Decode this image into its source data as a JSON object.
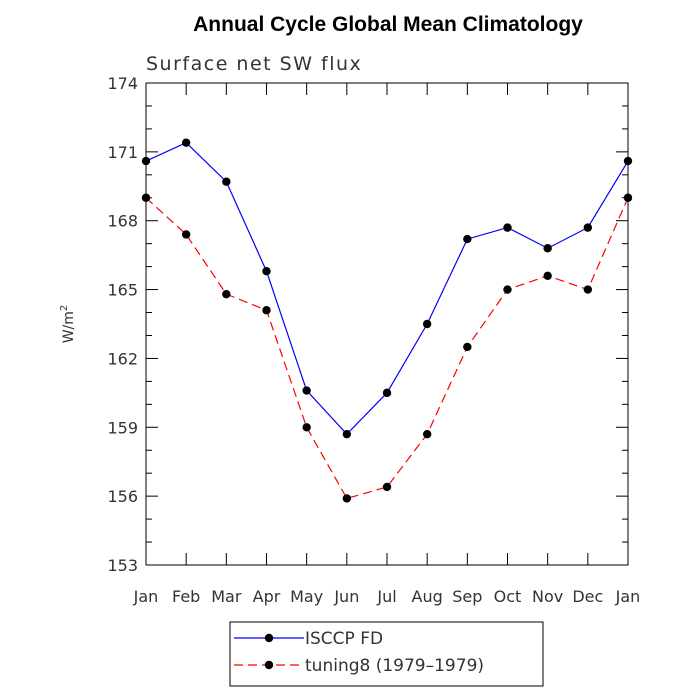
{
  "chart_data": {
    "type": "line",
    "title": "Annual Cycle Global Mean Climatology",
    "subtitle": "Surface net SW flux",
    "xlabel": "",
    "ylabel": "W/m",
    "ylabel_sup": "2",
    "categories": [
      "Jan",
      "Feb",
      "Mar",
      "Apr",
      "May",
      "Jun",
      "Jul",
      "Aug",
      "Sep",
      "Oct",
      "Nov",
      "Dec",
      "Jan"
    ],
    "ylim": [
      153,
      174
    ],
    "yticks": [
      153,
      156,
      159,
      162,
      165,
      168,
      171,
      174
    ],
    "grid": false,
    "legend_position": "bottom",
    "series": [
      {
        "name": "ISCCP FD",
        "color": "#0000ff",
        "dash": "solid",
        "values": [
          170.6,
          171.4,
          169.7,
          165.8,
          160.6,
          158.7,
          160.5,
          163.5,
          167.2,
          167.7,
          166.8,
          167.7,
          170.6
        ]
      },
      {
        "name": "tuning8 (1979–1979)",
        "color": "#ff0000",
        "dash": "dashed",
        "values": [
          169.0,
          167.4,
          164.8,
          164.1,
          159.0,
          155.9,
          156.4,
          158.7,
          162.5,
          165.0,
          165.6,
          165.0,
          169.0
        ]
      }
    ]
  }
}
